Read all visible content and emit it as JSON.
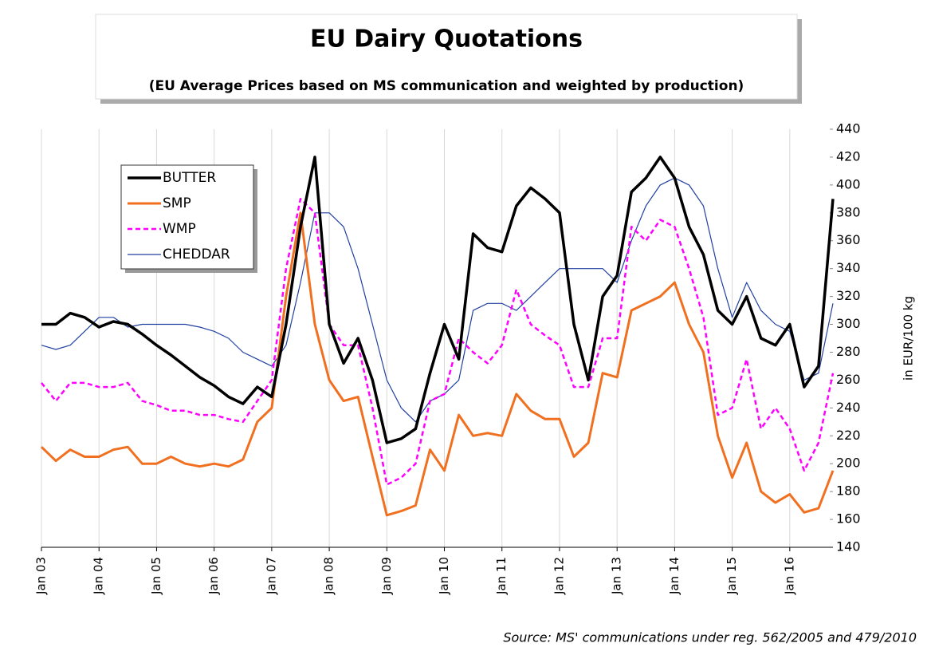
{
  "chart_data": {
    "type": "line",
    "title": "EU Dairy Quotations",
    "subtitle": "(EU Average Prices based on MS communication and weighted by production)",
    "y_axis_label": "in EUR/100 kg",
    "source": "Source: MS' communications under reg. 562/2005 and 479/2010",
    "x": [
      2003,
      2003.25,
      2003.5,
      2003.75,
      2004,
      2004.25,
      2004.5,
      2004.75,
      2005,
      2005.25,
      2005.5,
      2005.75,
      2006,
      2006.25,
      2006.5,
      2006.75,
      2007,
      2007.25,
      2007.5,
      2007.75,
      2008,
      2008.25,
      2008.5,
      2008.75,
      2009,
      2009.25,
      2009.5,
      2009.75,
      2010,
      2010.25,
      2010.5,
      2010.75,
      2011,
      2011.25,
      2011.5,
      2011.75,
      2012,
      2012.25,
      2012.5,
      2012.75,
      2013,
      2013.25,
      2013.5,
      2013.75,
      2014,
      2014.25,
      2014.5,
      2014.75,
      2015,
      2015.25,
      2015.5,
      2015.75,
      2016,
      2016.25,
      2016.5,
      2016.75
    ],
    "xlim": [
      2003,
      2016.75
    ],
    "xticks": [
      {
        "value": 2003,
        "label": "Jan 03"
      },
      {
        "value": 2004,
        "label": "Jan 04"
      },
      {
        "value": 2005,
        "label": "Jan 05"
      },
      {
        "value": 2006,
        "label": "Jan 06"
      },
      {
        "value": 2007,
        "label": "Jan 07"
      },
      {
        "value": 2008,
        "label": "Jan 08"
      },
      {
        "value": 2009,
        "label": "Jan 09"
      },
      {
        "value": 2010,
        "label": "Jan 10"
      },
      {
        "value": 2011,
        "label": "Jan 11"
      },
      {
        "value": 2012,
        "label": "Jan 12"
      },
      {
        "value": 2013,
        "label": "Jan 13"
      },
      {
        "value": 2014,
        "label": "Jan 14"
      },
      {
        "value": 2015,
        "label": "Jan 15"
      },
      {
        "value": 2016,
        "label": "Jan 16"
      }
    ],
    "ylim": [
      140,
      440
    ],
    "yticks": [
      140,
      160,
      180,
      200,
      220,
      240,
      260,
      280,
      300,
      320,
      340,
      360,
      380,
      400,
      420,
      440
    ],
    "grid": true,
    "legend": "upper-left",
    "series": [
      {
        "name": "BUTTER",
        "color": "#000000",
        "width": 3.5,
        "dashed": false,
        "values": [
          300,
          300,
          308,
          305,
          298,
          302,
          300,
          293,
          285,
          278,
          270,
          262,
          256,
          248,
          243,
          255,
          248,
          300,
          370,
          420,
          300,
          272,
          290,
          260,
          215,
          218,
          225,
          265,
          300,
          275,
          365,
          355,
          352,
          385,
          398,
          390,
          380,
          300,
          260,
          320,
          335,
          395,
          405,
          420,
          405,
          370,
          350,
          310,
          300,
          320,
          290,
          285,
          300,
          255,
          270,
          390
        ]
      },
      {
        "name": "SMP",
        "color": "#f07020",
        "width": 3,
        "dashed": false,
        "values": [
          212,
          202,
          210,
          205,
          205,
          210,
          212,
          200,
          200,
          205,
          200,
          198,
          200,
          198,
          203,
          230,
          240,
          320,
          380,
          300,
          260,
          245,
          248,
          205,
          163,
          166,
          170,
          210,
          195,
          235,
          220,
          222,
          220,
          250,
          238,
          232,
          232,
          205,
          215,
          265,
          262,
          310,
          315,
          320,
          330,
          300,
          280,
          220,
          190,
          215,
          180,
          172,
          178,
          165,
          168,
          195
        ]
      },
      {
        "name": "WMP",
        "color": "#ff00ff",
        "width": 2.5,
        "dashed": true,
        "values": [
          258,
          245,
          258,
          258,
          255,
          255,
          258,
          245,
          242,
          238,
          238,
          235,
          235,
          232,
          230,
          245,
          260,
          340,
          390,
          380,
          300,
          285,
          285,
          240,
          185,
          190,
          200,
          245,
          250,
          290,
          280,
          272,
          285,
          325,
          300,
          292,
          285,
          255,
          255,
          290,
          290,
          370,
          360,
          375,
          370,
          340,
          305,
          235,
          240,
          275,
          225,
          240,
          225,
          195,
          215,
          265
        ]
      },
      {
        "name": "CHEDDAR",
        "color": "#2040a0",
        "width": 1.2,
        "dashed": false,
        "values": [
          285,
          282,
          285,
          295,
          305,
          305,
          298,
          300,
          300,
          300,
          300,
          298,
          295,
          290,
          280,
          275,
          270,
          285,
          330,
          380,
          380,
          370,
          340,
          300,
          260,
          240,
          230,
          245,
          250,
          260,
          310,
          315,
          315,
          310,
          320,
          330,
          340,
          340,
          340,
          340,
          330,
          360,
          385,
          400,
          405,
          400,
          385,
          340,
          305,
          330,
          310,
          300,
          295,
          260,
          265,
          315
        ]
      }
    ]
  }
}
